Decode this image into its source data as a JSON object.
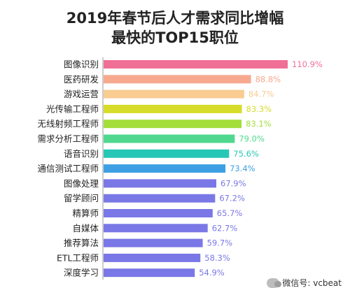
{
  "chart_data": {
    "type": "bar",
    "orientation": "horizontal",
    "title": [
      "2019年春节后人才需求同比增幅",
      "最快的TOP15职位"
    ],
    "categories": [
      "图像识别",
      "医药研发",
      "游戏运营",
      "光传输工程师",
      "无线射频工程师",
      "需求分析工程师",
      "语音识别",
      "通信测试工程师",
      "图像处理",
      "留学顾问",
      "精算师",
      "自媒体",
      "推荐算法",
      "ETL工程师",
      "深度学习"
    ],
    "values": [
      110.9,
      88.8,
      84.7,
      83.3,
      83.1,
      79.0,
      75.6,
      73.4,
      67.9,
      67.2,
      65.7,
      62.7,
      59.7,
      58.3,
      54.9
    ],
    "value_labels": [
      "110.9%",
      "88.8%",
      "84.7%",
      "83.3%",
      "83.1%",
      "79.0%",
      "75.6%",
      "73.4%",
      "67.9%",
      "67.2%",
      "65.7%",
      "62.7%",
      "59.7%",
      "58.3%",
      "54.9%"
    ],
    "xlim": [
      0,
      110.9
    ],
    "grid": false,
    "bar_colors": [
      "#f06f97",
      "#f7a98f",
      "#f9cc92",
      "#d7dc2b",
      "#a3de3a",
      "#4fd88e",
      "#27c7b6",
      "#3ea0e4",
      "#7a78e6",
      "#7a78e6",
      "#7a78e6",
      "#7a78e6",
      "#7a78e6",
      "#7a78e6",
      "#7a78e6"
    ]
  },
  "watermark": "微信号: vcbeat"
}
